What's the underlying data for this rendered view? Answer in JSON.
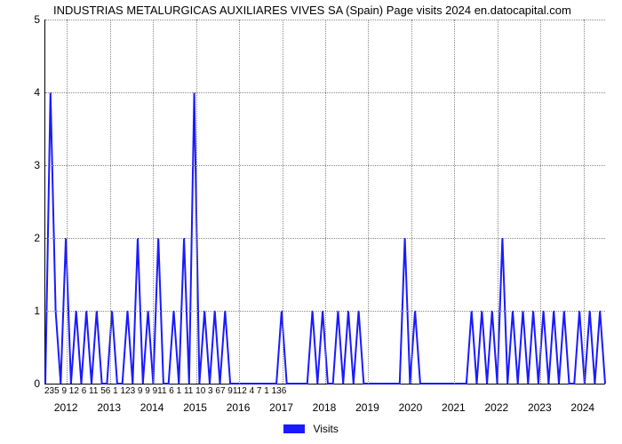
{
  "chart": {
    "type": "line",
    "title": "INDUSTRIAS METALURGICAS AUXILIARES VIVES SA (Spain) Page visits 2024 en.datocapital.com",
    "title_fontsize": 13,
    "background_color": "#ffffff",
    "grid_color": "#888888",
    "line_color": "#1a1aff",
    "line_width": 2,
    "ylim": [
      0,
      5
    ],
    "ytick_step": 1,
    "year_labels": [
      "2012",
      "2013",
      "2014",
      "2015",
      "2016",
      "2017",
      "2018",
      "2019",
      "2020",
      "2021",
      "2022",
      "2023",
      "2024"
    ],
    "month_sublabels": "235    9  12   6  11    56   1 123    9                      9         911    6   1 11                              10   3  67 9112  4  7   1 136",
    "values": [
      0,
      4,
      1,
      0,
      2,
      0,
      1,
      0,
      1,
      0,
      1,
      0,
      0,
      1,
      0,
      0,
      1,
      0,
      2,
      0,
      1,
      0,
      2,
      0,
      0,
      1,
      0,
      2,
      0,
      4,
      0,
      1,
      0,
      1,
      0,
      1,
      0,
      0,
      0,
      0,
      0,
      0,
      0,
      0,
      0,
      0,
      1,
      0,
      0,
      0,
      0,
      0,
      1,
      0,
      1,
      0,
      0,
      1,
      0,
      1,
      0,
      1,
      0,
      0,
      0,
      0,
      0,
      0,
      0,
      0,
      2,
      0,
      1,
      0,
      0,
      0,
      0,
      0,
      0,
      0,
      0,
      0,
      0,
      1,
      0,
      1,
      0,
      1,
      0,
      2,
      0,
      1,
      0,
      1,
      0,
      1,
      0,
      1,
      0,
      1,
      0,
      1,
      0,
      0,
      1,
      0,
      1,
      0,
      1,
      0
    ],
    "legend_label": "Visits",
    "label_fontsize": 12
  }
}
